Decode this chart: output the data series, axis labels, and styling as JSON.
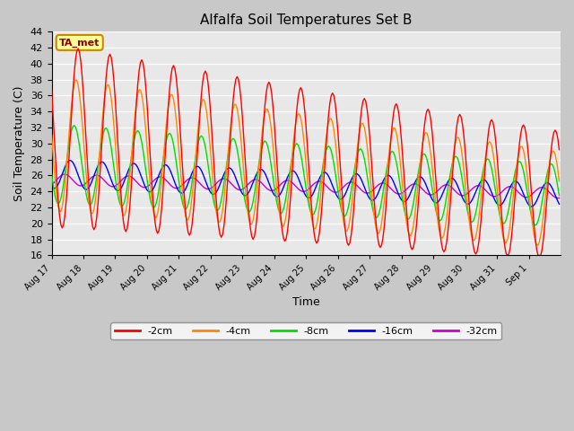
{
  "title": "Alfalfa Soil Temperatures Set B",
  "xlabel": "Time",
  "ylabel": "Soil Temperature (C)",
  "ylim": [
    16,
    44
  ],
  "yticks": [
    16,
    18,
    20,
    22,
    24,
    26,
    28,
    30,
    32,
    34,
    36,
    38,
    40,
    42,
    44
  ],
  "bg_color": "#e8e8e8",
  "line_colors": {
    "-2cm": "#ff0000",
    "-4cm": "#ff8800",
    "-8cm": "#00dd00",
    "-16cm": "#0000ff",
    "-32cm": "#cc00cc"
  },
  "xtick_labels": [
    "Aug 17",
    "Aug 18",
    "Aug 19",
    "Aug 20",
    "Aug 21",
    "Aug 22",
    "Aug 23",
    "Aug 24",
    "Aug 25",
    "Aug 26",
    "Aug 27",
    "Aug 28",
    "Aug 29",
    "Aug 30",
    "Aug 31",
    "Sep 1"
  ],
  "legend_label": "TA_met",
  "legend_bg": "#ffff99",
  "legend_border": "#cc8800",
  "n_days": 16
}
